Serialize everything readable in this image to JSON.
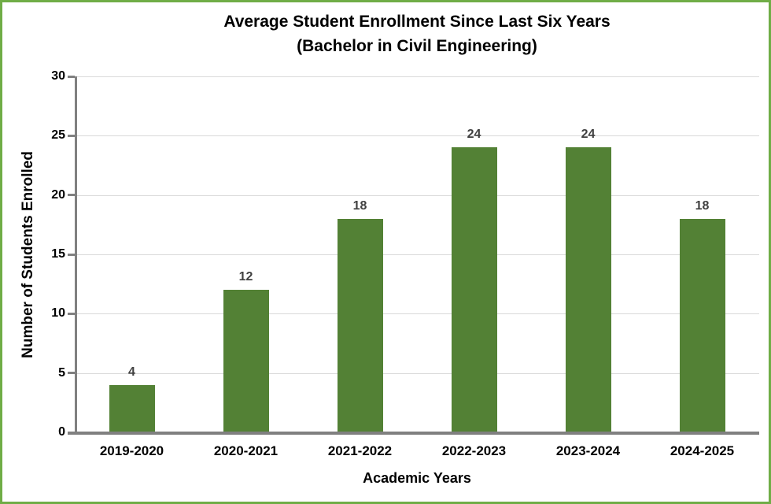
{
  "chart_data": {
    "type": "bar",
    "title_line1": "Average Student Enrollment Since Last Six Years",
    "title_line2": "(Bachelor in Civil Engineering)",
    "categories": [
      "2019-2020",
      "2020-2021",
      "2021-2022",
      "2022-2023",
      "2023-2024",
      "2024-2025"
    ],
    "values": [
      4,
      12,
      18,
      24,
      24,
      18
    ],
    "data_labels": [
      "4",
      "12",
      "18",
      "24",
      "24",
      "18"
    ],
    "xlabel": "Academic Years",
    "ylabel": "Number of Students Enrolled",
    "ylim": [
      0,
      30
    ],
    "yticks": [
      0,
      5,
      10,
      15,
      20,
      25,
      30
    ],
    "grid": true,
    "legend": false,
    "colors": {
      "bar": "#538135",
      "frame_border": "#70ad47",
      "axis": "#808080",
      "gridline": "#d9d9d9",
      "data_label": "#404040",
      "text": "#000000",
      "background": "#ffffff"
    }
  }
}
